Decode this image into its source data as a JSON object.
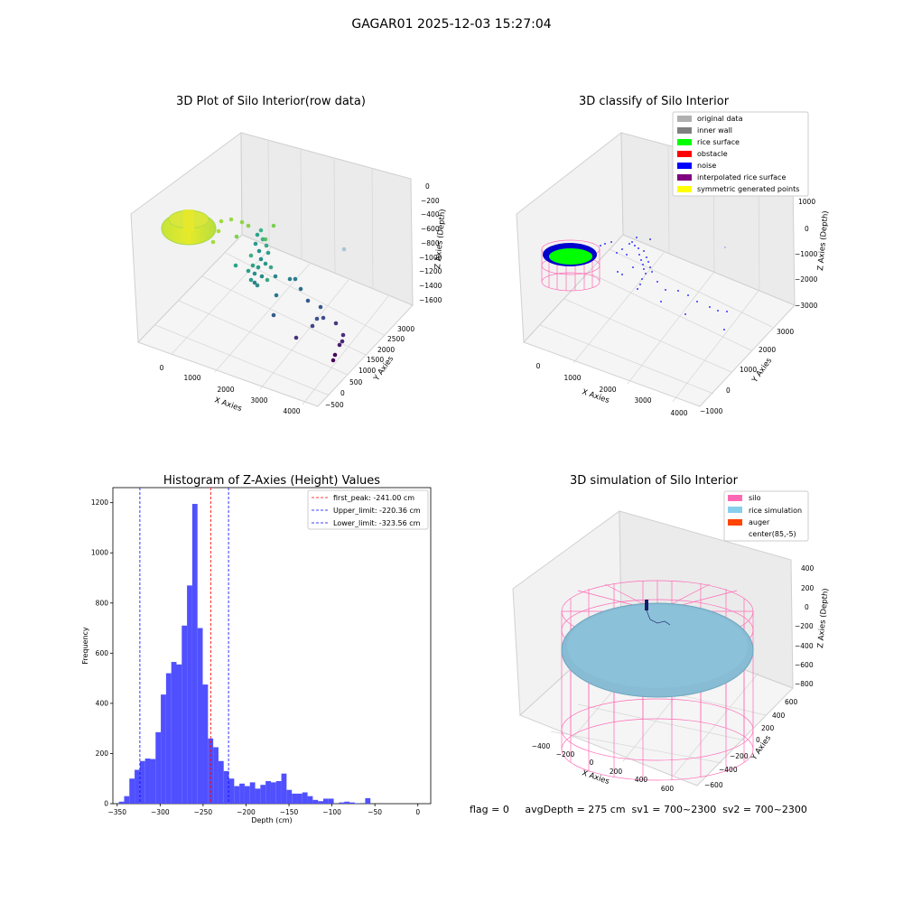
{
  "figure": {
    "suptitle": "GAGAR01 2025-12-03 15:27:04",
    "status_line": "flag = 0     avgDepth = 275 cm  sv1 = 700~2300  sv2 = 700~2300"
  },
  "panels": {
    "raw": {
      "title": "3D Plot of Silo Interior(row data)",
      "xlabel": "X Axies",
      "ylabel": "Y Axies",
      "zlabel": "Z Axies (Depth)",
      "xticks": [
        "0",
        "1000",
        "2000",
        "3000",
        "4000"
      ],
      "yticks": [
        "−500",
        "0",
        "500",
        "1000",
        "1500",
        "2000",
        "2500",
        "3000"
      ],
      "zticks": [
        "0",
        "−200",
        "−400",
        "−600",
        "−800",
        "−1000",
        "−1200",
        "−1400",
        "−1600"
      ]
    },
    "classify": {
      "title": "3D classify of Silo Interior",
      "xlabel": "X Axies",
      "ylabel": "Y Axies",
      "zlabel": "Z Axies (Depth)",
      "xticks": [
        "0",
        "1000",
        "2000",
        "3000",
        "4000"
      ],
      "yticks": [
        "−1000",
        "0",
        "1000",
        "2000",
        "3000"
      ],
      "zticks": [
        "1000",
        "0",
        "−1000",
        "−2000",
        "−3000"
      ],
      "legend": [
        {
          "label": "original data",
          "color": "#b0b0b0"
        },
        {
          "label": "inner wall",
          "color": "#808080"
        },
        {
          "label": "rice surface",
          "color": "#00ff00"
        },
        {
          "label": "obstacle",
          "color": "#ff0000"
        },
        {
          "label": "noise",
          "color": "#0000ff"
        },
        {
          "label": "interpolated rice surface",
          "color": "#800080"
        },
        {
          "label": "symmetric generated points",
          "color": "#ffff00"
        }
      ]
    },
    "simulation": {
      "title": "3D simulation of Silo Interior",
      "xlabel": "X Axies",
      "ylabel": "Y Axies",
      "zlabel": "Z Axies (Depth)",
      "xticks": [
        "−400",
        "−200",
        "0",
        "200",
        "400",
        "600"
      ],
      "yticks": [
        "−600",
        "−400",
        "−200",
        "0",
        "200",
        "400",
        "600"
      ],
      "zticks": [
        "400",
        "200",
        "0",
        "−200",
        "−400",
        "−600",
        "−800"
      ],
      "legend": [
        {
          "label": "silo",
          "color": "#ff69b4"
        },
        {
          "label": "rice simulation",
          "color": "#87ceeb"
        },
        {
          "label": "auger",
          "color": "#ff4500"
        },
        {
          "label": "center(85,-5)",
          "color": ""
        }
      ]
    }
  },
  "chart_data": {
    "type": "bar",
    "title": "Histogram of Z-Axies (Height) Values",
    "xlabel": "Depth (cm)",
    "ylabel": "Frequency",
    "xlim": [
      -355,
      15
    ],
    "ylim": [
      0,
      1260
    ],
    "xticks": [
      -350,
      -300,
      -250,
      -200,
      -150,
      -100,
      -50,
      0
    ],
    "yticks": [
      0,
      200,
      400,
      600,
      800,
      1000,
      1200
    ],
    "bin_start": -348,
    "bin_width": 6.1,
    "values": [
      8,
      30,
      100,
      135,
      170,
      180,
      178,
      285,
      435,
      520,
      565,
      555,
      710,
      870,
      1195,
      700,
      475,
      260,
      225,
      170,
      130,
      100,
      70,
      80,
      70,
      85,
      60,
      75,
      90,
      85,
      90,
      120,
      55,
      40,
      40,
      45,
      30,
      15,
      10,
      20,
      20,
      0,
      5,
      8,
      5,
      2,
      0,
      22
    ],
    "bar_color": "#5050ff",
    "lines": [
      {
        "x": -241.0,
        "color": "#ff0000",
        "label": "first_peak: -241.00 cm"
      },
      {
        "x": -220.36,
        "color": "#0000ff",
        "label": "Upper_limit: -220.36 cm"
      },
      {
        "x": -323.56,
        "color": "#0000ff",
        "label": "Lower_limit: -323.56 cm"
      }
    ],
    "legend_position": "top-right",
    "grid": false
  }
}
